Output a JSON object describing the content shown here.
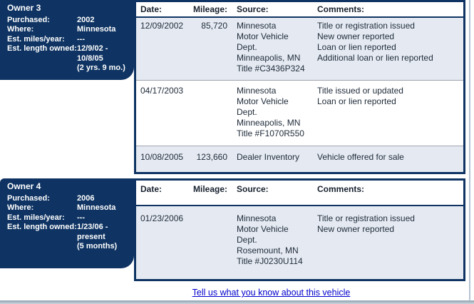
{
  "table_headers": {
    "date": "Date:",
    "mileage": "Mileage:",
    "source": "Source:",
    "comments": "Comments:"
  },
  "owners": [
    {
      "title": "Owner 3",
      "fields": [
        {
          "label": "Purchased:",
          "value": "2002"
        },
        {
          "label": "Where:",
          "value": "Minnesota"
        },
        {
          "label": "Est. miles/year:",
          "value": "---"
        },
        {
          "label": "Est. length owned:",
          "value": "12/9/02 -\n10/8/05\n(2 yrs. 9 mo.)"
        }
      ],
      "rows": [
        {
          "date": "12/09/2002",
          "mileage": "85,720",
          "source": "Minnesota\nMotor Vehicle\nDept.\nMinneapolis, MN\nTitle #C3436P324",
          "comments": "Title or registration issued\nNew owner reported\nLoan or lien reported\nAdditional loan or lien reported"
        },
        {
          "date": "04/17/2003",
          "mileage": "",
          "source": "Minnesota\nMotor Vehicle\nDept.\nMinneapolis, MN\nTitle #F1070R550",
          "comments": "Title issued or updated\nLoan or lien reported"
        },
        {
          "date": "10/08/2005",
          "mileage": "123,660",
          "source": "Dealer Inventory",
          "comments": "Vehicle offered for sale"
        }
      ]
    },
    {
      "title": "Owner 4",
      "fields": [
        {
          "label": "Purchased:",
          "value": "2006"
        },
        {
          "label": "Where:",
          "value": "Minnesota"
        },
        {
          "label": "Est. miles/year:",
          "value": "---"
        },
        {
          "label": "Est. length owned:",
          "value": "1/23/06 -\npresent\n(5 months)"
        }
      ],
      "rows": [
        {
          "date": "01/23/2006",
          "mileage": "",
          "source": "Minnesota\nMotor Vehicle\nDept.\nRosemount, MN\nTitle #J0230U114",
          "comments": "Title or registration issued\nNew owner reported"
        }
      ]
    }
  ],
  "footer": {
    "link": "Tell us what you know about this vehicle"
  },
  "colors": {
    "navy": "#0f3463",
    "row_blue": "#e5eaf2",
    "link_blue": "#0000cc",
    "separator_gray": "#9ca3ad",
    "frame_gray": "#b6c3d3",
    "body_text": "#212d3b"
  }
}
